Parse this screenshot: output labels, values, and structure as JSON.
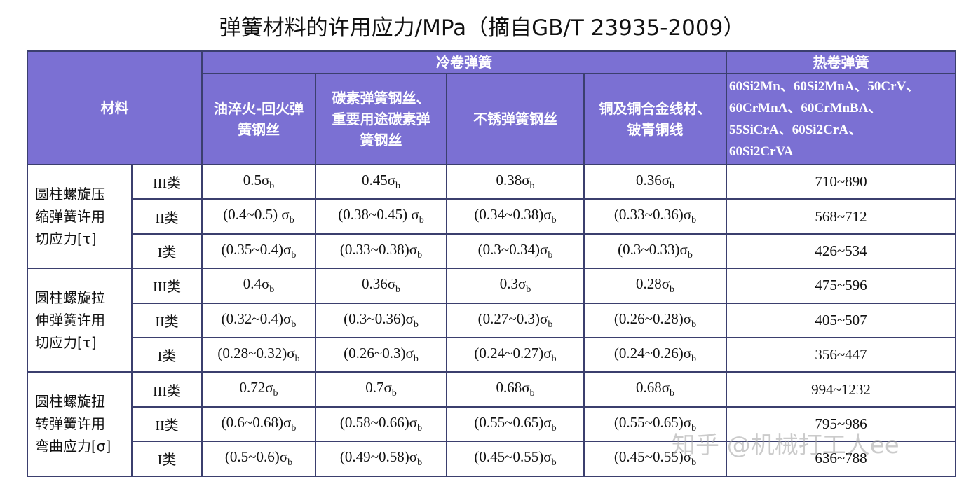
{
  "title": "弹簧材料的许用应力/MPa（摘自GB/T 23935-2009）",
  "table": {
    "header": {
      "material": "材料",
      "cold": "冷卷弹簧",
      "hot": "热卷弹簧",
      "cold_columns": [
        [
          "油淬火-回火弹",
          "簧钢丝"
        ],
        [
          "碳素弹簧钢丝、",
          "重要用途碳素弹",
          "簧钢丝"
        ],
        [
          "不锈弹簧钢丝"
        ],
        [
          "铜及铜合金线材、",
          "铍青铜线"
        ]
      ],
      "hot_materials": [
        "60Si2Mn、60Si2MnA、50CrV、",
        "60CrMnA、60CrMnBA、",
        "55SiCrA、60Si2CrA、",
        "60Si2CrVA"
      ]
    },
    "groups": [
      {
        "label": [
          "圆柱螺旋压",
          "缩弹簧许用",
          "切应力[τ]"
        ],
        "rows": [
          {
            "class": "III类",
            "cells": [
              {
                "text": "0.5σ",
                "sub": "b"
              },
              {
                "text": "0.45σ",
                "sub": "b"
              },
              {
                "text": "0.38σ",
                "sub": "b"
              },
              {
                "text": "0.36σ",
                "sub": "b"
              }
            ],
            "hot": "710~890"
          },
          {
            "class": "II类",
            "cells": [
              {
                "text": "(0.4~0.5) σ",
                "sub": "b"
              },
              {
                "text": "(0.38~0.45) σ",
                "sub": "b"
              },
              {
                "text": "(0.34~0.38)σ",
                "sub": "b"
              },
              {
                "text": "(0.33~0.36)σ",
                "sub": "b"
              }
            ],
            "hot": "568~712"
          },
          {
            "class": "I类",
            "cells": [
              {
                "text": "(0.35~0.4)σ",
                "sub": "b"
              },
              {
                "text": "(0.33~0.38)σ",
                "sub": "b"
              },
              {
                "text": "(0.3~0.34)σ",
                "sub": "b"
              },
              {
                "text": "(0.3~0.33)σ",
                "sub": "b"
              }
            ],
            "hot": "426~534"
          }
        ]
      },
      {
        "label": [
          "圆柱螺旋拉",
          "伸弹簧许用",
          "切应力[τ]"
        ],
        "rows": [
          {
            "class": "III类",
            "cells": [
              {
                "text": "0.4σ",
                "sub": "b"
              },
              {
                "text": "0.36σ",
                "sub": "b"
              },
              {
                "text": "0.3σ",
                "sub": "b"
              },
              {
                "text": "0.28σ",
                "sub": "b"
              }
            ],
            "hot": "475~596"
          },
          {
            "class": "II类",
            "cells": [
              {
                "text": "(0.32~0.4)σ",
                "sub": "b"
              },
              {
                "text": "(0.3~0.36)σ",
                "sub": "b"
              },
              {
                "text": "(0.27~0.3)σ",
                "sub": "b"
              },
              {
                "text": "(0.26~0.28)σ",
                "sub": "b"
              }
            ],
            "hot": "405~507"
          },
          {
            "class": "I类",
            "cells": [
              {
                "text": "(0.28~0.32)σ",
                "sub": "b"
              },
              {
                "text": "(0.26~0.3)σ",
                "sub": "b"
              },
              {
                "text": "(0.24~0.27)σ",
                "sub": "b"
              },
              {
                "text": "(0.24~0.26)σ",
                "sub": "b"
              }
            ],
            "hot": "356~447"
          }
        ]
      },
      {
        "label": [
          "圆柱螺旋扭",
          "转弹簧许用",
          "弯曲应力[σ]"
        ],
        "rows": [
          {
            "class": "III类",
            "cells": [
              {
                "text": "0.72σ",
                "sub": "b"
              },
              {
                "text": "0.7σ",
                "sub": "b"
              },
              {
                "text": "0.68σ",
                "sub": "b"
              },
              {
                "text": "0.68σ",
                "sub": "b"
              }
            ],
            "hot": "994~1232"
          },
          {
            "class": "II类",
            "cells": [
              {
                "text": "(0.6~0.68)σ",
                "sub": "b"
              },
              {
                "text": "(0.58~0.66)σ",
                "sub": "b"
              },
              {
                "text": "(0.55~0.65)σ",
                "sub": "b"
              },
              {
                "text": "(0.55~0.65)σ",
                "sub": "b"
              }
            ],
            "hot": "795~986"
          },
          {
            "class": "I类",
            "cells": [
              {
                "text": "(0.5~0.6)σ",
                "sub": "b"
              },
              {
                "text": "(0.49~0.58)σ",
                "sub": "b"
              },
              {
                "text": "(0.45~0.55)σ",
                "sub": "b"
              },
              {
                "text": "(0.45~0.55)σ",
                "sub": "b"
              }
            ],
            "hot": "636~788"
          }
        ]
      }
    ]
  },
  "watermark": "知乎 @机械打工人ee"
}
